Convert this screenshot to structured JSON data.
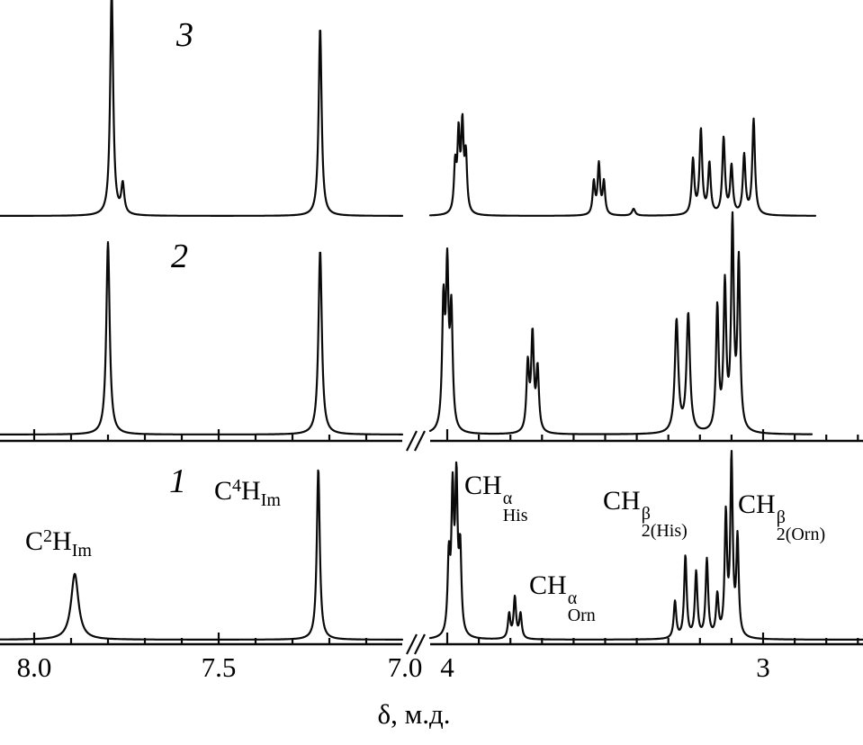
{
  "figure": {
    "background": "#ffffff",
    "line_color": "#0a0a0a"
  },
  "chart_data": {
    "type": "line",
    "description_visible_text_only": "Three stacked 1H NMR spectra traces numbered 1, 2, 3",
    "xlabel": "δ, м.д.",
    "ylabel": "",
    "x_axis": {
      "reversed": true,
      "has_break": true,
      "segments": [
        {
          "ppm_range": [
            8.09,
            7.0
          ],
          "major_ticks": [
            8.0,
            7.5,
            7.0
          ],
          "major_tick_labels": [
            "8.0",
            "7.5",
            "7.0"
          ],
          "minor_tick_step": 0.1
        },
        {
          "ppm_range": [
            4.05,
            2.69
          ],
          "major_ticks": [
            4.0,
            3.0
          ],
          "major_tick_labels": [
            "4",
            "3"
          ],
          "minor_tick_step": 0.1
        }
      ]
    },
    "spectra": [
      {
        "label": "1",
        "peaks": [
          {
            "assignment": "C2H(Im)",
            "ppm": 7.89,
            "height": 0.37,
            "hwhm": 0.012,
            "lines": [
              [
                0,
                1
              ]
            ]
          },
          {
            "assignment": "C4H(Im)",
            "ppm": 7.23,
            "height": 0.96,
            "hwhm": 0.0048,
            "lines": [
              [
                0,
                1
              ]
            ]
          },
          {
            "assignment": "CHa(His)",
            "ppm": 3.977,
            "height": 0.83,
            "hwhm": 0.0046,
            "lines": [
              [
                -0.018,
                0.55
              ],
              [
                -0.006,
                1
              ],
              [
                0.006,
                0.92
              ],
              [
                0.018,
                0.5
              ]
            ]
          },
          {
            "assignment": "CHa(Orn)",
            "ppm": 3.786,
            "height": 0.23,
            "hwhm": 0.0046,
            "lines": [
              [
                -0.018,
                0.6
              ],
              [
                0,
                1
              ],
              [
                0.018,
                0.6
              ]
            ]
          },
          {
            "assignment": "CH2b(His)",
            "ppm": 3.212,
            "height": 0.46,
            "hwhm": 0.0048,
            "lines": [
              [
                -0.067,
                0.5
              ],
              [
                -0.034,
                0.95
              ],
              [
                0,
                0.8
              ],
              [
                0.034,
                1
              ],
              [
                0.067,
                0.45
              ]
            ]
          },
          {
            "assignment": "CH2b(Orn)",
            "ppm": 3.1,
            "height": 0.99,
            "hwhm": 0.0045,
            "lines": [
              [
                -0.019,
                0.55
              ],
              [
                0,
                1
              ],
              [
                0.018,
                0.68
              ]
            ]
          }
        ]
      },
      {
        "label": "2",
        "peaks": [
          {
            "assignment": "C2H(Im)",
            "ppm": 7.8,
            "height": 0.93,
            "hwhm": 0.0055,
            "lines": [
              [
                0,
                1
              ]
            ]
          },
          {
            "assignment": "C4H(Im)",
            "ppm": 7.225,
            "height": 0.89,
            "hwhm": 0.0055,
            "lines": [
              [
                0,
                1
              ]
            ]
          },
          {
            "assignment": "CHa(His)",
            "ppm": 4.0,
            "height": 0.74,
            "hwhm": 0.005,
            "lines": [
              [
                -0.013,
                0.75
              ],
              [
                0,
                1
              ],
              [
                0.012,
                0.8
              ]
            ]
          },
          {
            "assignment": "CHa(Orn)",
            "ppm": 3.73,
            "height": 0.46,
            "hwhm": 0.005,
            "lines": [
              [
                -0.016,
                0.65
              ],
              [
                0,
                1
              ],
              [
                0.015,
                0.7
              ]
            ]
          },
          {
            "assignment": "CH2b(His)",
            "ppm": 3.256,
            "height": 0.57,
            "hwhm": 0.0065,
            "lines": [
              [
                -0.019,
                1
              ],
              [
                0.018,
                0.95
              ]
            ]
          },
          {
            "assignment": "CH2b(Orn)",
            "ppm": 3.097,
            "height": 0.99,
            "hwhm": 0.005,
            "lines": [
              [
                0.048,
                0.6
              ],
              [
                0.024,
                0.7
              ],
              [
                0,
                1
              ],
              [
                -0.02,
                0.82
              ]
            ]
          }
        ]
      },
      {
        "label": "3",
        "peaks": [
          {
            "assignment": "C2H(Im)",
            "ppm": 7.79,
            "height": 1.0,
            "hwhm": 0.0048,
            "lines": [
              [
                0,
                1
              ],
              [
                -0.03,
                0.13
              ]
            ]
          },
          {
            "assignment": "C4H(Im)",
            "ppm": 7.225,
            "height": 0.83,
            "hwhm": 0.0048,
            "lines": [
              [
                0,
                1
              ]
            ]
          },
          {
            "assignment": "CHa(His)",
            "ppm": 3.958,
            "height": 0.37,
            "hwhm": 0.0045,
            "lines": [
              [
                -0.017,
                0.65
              ],
              [
                -0.006,
                1
              ],
              [
                0.006,
                0.9
              ],
              [
                0.017,
                0.55
              ]
            ]
          },
          {
            "assignment": "CHa(Orn)",
            "ppm": 3.52,
            "height": 0.22,
            "hwhm": 0.0045,
            "lines": [
              [
                -0.016,
                0.65
              ],
              [
                0,
                1
              ],
              [
                0.016,
                0.65
              ]
            ]
          },
          {
            "assignment": "impurity",
            "ppm": 3.41,
            "height": 0.03,
            "hwhm": 0.006,
            "lines": [
              [
                0,
                1
              ]
            ]
          },
          {
            "assignment": "CH2b(His)",
            "ppm": 3.195,
            "height": 0.37,
            "hwhm": 0.005,
            "lines": [
              [
                0.027,
                0.65
              ],
              [
                0.002,
                1
              ],
              [
                -0.025,
                0.6
              ]
            ]
          },
          {
            "assignment": "CH2b(Orn)",
            "ppm": 3.08,
            "height": 0.42,
            "hwhm": 0.005,
            "lines": [
              [
                0.045,
                0.8
              ],
              [
                0.02,
                0.5
              ],
              [
                -0.02,
                0.62
              ],
              [
                -0.05,
                1
              ]
            ]
          }
        ]
      }
    ]
  },
  "peak_labels": {
    "c2h_im": {
      "el": "C",
      "sup": "2",
      "el2": "H",
      "sub": "Im"
    },
    "c4h_im": {
      "el": "C",
      "sup": "4",
      "el2": "H",
      "sub": "Im"
    },
    "ch_a_his": {
      "base": "CH",
      "sup": "α",
      "sub": "His"
    },
    "ch_a_orn": {
      "base": "CH",
      "sup": "α",
      "sub": "Orn"
    },
    "ch_b_his": {
      "base": "CH",
      "sup": "β",
      "sub": "2(His)"
    },
    "ch_b_orn": {
      "base": "CH",
      "sup": "β",
      "sub": "2(Orn)"
    }
  }
}
